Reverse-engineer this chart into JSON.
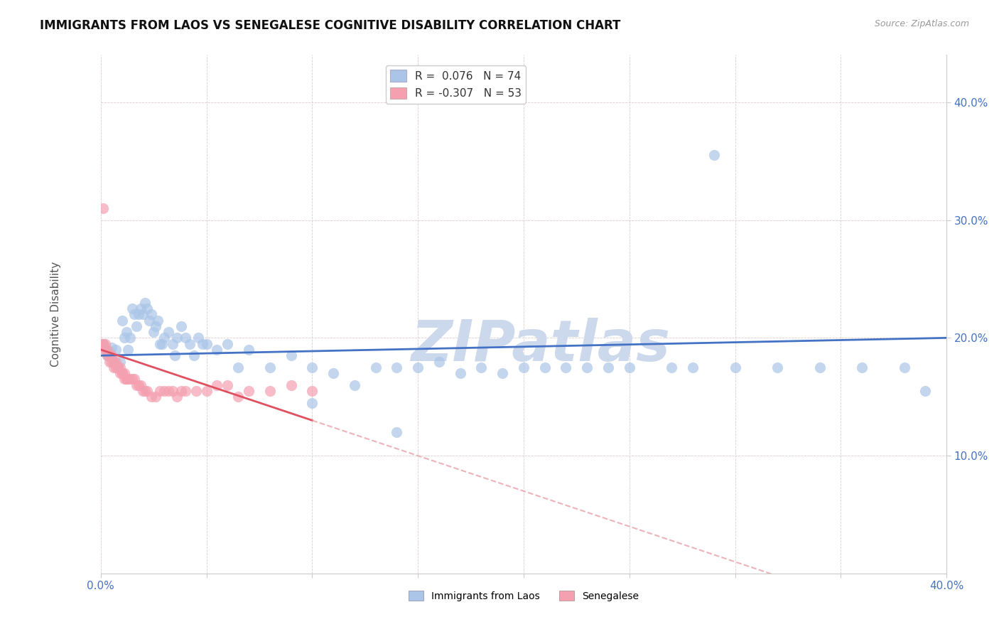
{
  "title": "IMMIGRANTS FROM LAOS VS SENEGALESE COGNITIVE DISABILITY CORRELATION CHART",
  "source": "Source: ZipAtlas.com",
  "ylabel": "Cognitive Disability",
  "ytick_vals": [
    0.1,
    0.2,
    0.3,
    0.4
  ],
  "ytick_labels": [
    "10.0%",
    "20.0%",
    "30.0%",
    "40.0%"
  ],
  "xlim": [
    0.0,
    0.4
  ],
  "ylim": [
    0.0,
    0.44
  ],
  "legend1_label": "R =  0.076   N = 74",
  "legend2_label": "R = -0.307   N = 53",
  "scatter_laos_color": "#aac5e8",
  "scatter_senegal_color": "#f4a0b0",
  "trend_laos_color": "#4472c4",
  "trend_senegal_solid_color": "#e05060",
  "trend_senegal_dash_color": "#e8a0a8",
  "watermark": "ZIPatlas",
  "watermark_color": "#ccd8ec",
  "laos_R": 0.076,
  "senegal_R": -0.307,
  "laos_points": [
    [
      0.001,
      0.195
    ],
    [
      0.002,
      0.19
    ],
    [
      0.003,
      0.185
    ],
    [
      0.004,
      0.188
    ],
    [
      0.005,
      0.192
    ],
    [
      0.006,
      0.18
    ],
    [
      0.007,
      0.19
    ],
    [
      0.008,
      0.175
    ],
    [
      0.009,
      0.18
    ],
    [
      0.01,
      0.215
    ],
    [
      0.011,
      0.2
    ],
    [
      0.012,
      0.205
    ],
    [
      0.013,
      0.19
    ],
    [
      0.014,
      0.2
    ],
    [
      0.015,
      0.225
    ],
    [
      0.016,
      0.22
    ],
    [
      0.017,
      0.21
    ],
    [
      0.018,
      0.22
    ],
    [
      0.019,
      0.225
    ],
    [
      0.02,
      0.22
    ],
    [
      0.021,
      0.23
    ],
    [
      0.022,
      0.225
    ],
    [
      0.023,
      0.215
    ],
    [
      0.024,
      0.22
    ],
    [
      0.025,
      0.205
    ],
    [
      0.026,
      0.21
    ],
    [
      0.027,
      0.215
    ],
    [
      0.028,
      0.195
    ],
    [
      0.029,
      0.195
    ],
    [
      0.03,
      0.2
    ],
    [
      0.032,
      0.205
    ],
    [
      0.034,
      0.195
    ],
    [
      0.035,
      0.185
    ],
    [
      0.036,
      0.2
    ],
    [
      0.038,
      0.21
    ],
    [
      0.04,
      0.2
    ],
    [
      0.042,
      0.195
    ],
    [
      0.044,
      0.185
    ],
    [
      0.046,
      0.2
    ],
    [
      0.048,
      0.195
    ],
    [
      0.05,
      0.195
    ],
    [
      0.055,
      0.19
    ],
    [
      0.06,
      0.195
    ],
    [
      0.065,
      0.175
    ],
    [
      0.07,
      0.19
    ],
    [
      0.08,
      0.175
    ],
    [
      0.09,
      0.185
    ],
    [
      0.1,
      0.175
    ],
    [
      0.11,
      0.17
    ],
    [
      0.12,
      0.16
    ],
    [
      0.13,
      0.175
    ],
    [
      0.14,
      0.175
    ],
    [
      0.15,
      0.175
    ],
    [
      0.16,
      0.18
    ],
    [
      0.17,
      0.17
    ],
    [
      0.18,
      0.175
    ],
    [
      0.19,
      0.17
    ],
    [
      0.2,
      0.175
    ],
    [
      0.21,
      0.175
    ],
    [
      0.22,
      0.175
    ],
    [
      0.23,
      0.175
    ],
    [
      0.24,
      0.175
    ],
    [
      0.25,
      0.175
    ],
    [
      0.27,
      0.175
    ],
    [
      0.28,
      0.175
    ],
    [
      0.3,
      0.175
    ],
    [
      0.32,
      0.175
    ],
    [
      0.34,
      0.175
    ],
    [
      0.36,
      0.175
    ],
    [
      0.38,
      0.175
    ],
    [
      0.39,
      0.155
    ],
    [
      0.1,
      0.145
    ],
    [
      0.14,
      0.12
    ],
    [
      0.29,
      0.355
    ]
  ],
  "senegal_points": [
    [
      0.001,
      0.195
    ],
    [
      0.001,
      0.195
    ],
    [
      0.002,
      0.195
    ],
    [
      0.002,
      0.19
    ],
    [
      0.003,
      0.19
    ],
    [
      0.003,
      0.185
    ],
    [
      0.004,
      0.185
    ],
    [
      0.004,
      0.18
    ],
    [
      0.005,
      0.185
    ],
    [
      0.005,
      0.18
    ],
    [
      0.006,
      0.18
    ],
    [
      0.006,
      0.175
    ],
    [
      0.007,
      0.18
    ],
    [
      0.007,
      0.175
    ],
    [
      0.008,
      0.175
    ],
    [
      0.008,
      0.175
    ],
    [
      0.009,
      0.175
    ],
    [
      0.009,
      0.17
    ],
    [
      0.01,
      0.17
    ],
    [
      0.01,
      0.17
    ],
    [
      0.011,
      0.17
    ],
    [
      0.011,
      0.165
    ],
    [
      0.012,
      0.165
    ],
    [
      0.012,
      0.165
    ],
    [
      0.013,
      0.165
    ],
    [
      0.014,
      0.165
    ],
    [
      0.015,
      0.165
    ],
    [
      0.016,
      0.165
    ],
    [
      0.017,
      0.16
    ],
    [
      0.018,
      0.16
    ],
    [
      0.019,
      0.16
    ],
    [
      0.02,
      0.155
    ],
    [
      0.021,
      0.155
    ],
    [
      0.022,
      0.155
    ],
    [
      0.024,
      0.15
    ],
    [
      0.026,
      0.15
    ],
    [
      0.028,
      0.155
    ],
    [
      0.03,
      0.155
    ],
    [
      0.032,
      0.155
    ],
    [
      0.034,
      0.155
    ],
    [
      0.036,
      0.15
    ],
    [
      0.038,
      0.155
    ],
    [
      0.04,
      0.155
    ],
    [
      0.045,
      0.155
    ],
    [
      0.05,
      0.155
    ],
    [
      0.055,
      0.16
    ],
    [
      0.06,
      0.16
    ],
    [
      0.065,
      0.15
    ],
    [
      0.07,
      0.155
    ],
    [
      0.08,
      0.155
    ],
    [
      0.09,
      0.16
    ],
    [
      0.1,
      0.155
    ],
    [
      0.001,
      0.31
    ]
  ]
}
